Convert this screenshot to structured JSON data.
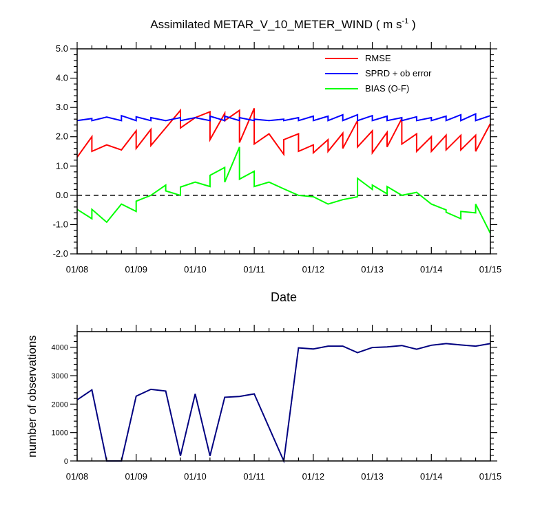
{
  "chart_data": [
    {
      "type": "line",
      "title": "Assimilated METAR_V_10_METER_WIND ( m s",
      "title_exponent": "-1",
      "title_close": " )",
      "xlabel": "Date",
      "ylabel": "",
      "xlim": [
        0,
        7
      ],
      "ylim": [
        -2.0,
        5.0
      ],
      "yticks": [
        -2.0,
        -1.0,
        0.0,
        1.0,
        2.0,
        3.0,
        4.0,
        5.0
      ],
      "ytick_labels": [
        "-2.0",
        "-1.0",
        "0.0",
        "1.0",
        "2.0",
        "3.0",
        "4.0",
        "5.0"
      ],
      "xtick_labels": [
        "01/08",
        "01/09",
        "01/10",
        "01/11",
        "01/12",
        "01/13",
        "01/14",
        "01/15"
      ],
      "zero_line": true,
      "legend_position": "top-right",
      "series": [
        {
          "name": "RMSE",
          "color": "#ff0000",
          "x": [
            0,
            0.25,
            0.25,
            0.5,
            0.75,
            0.75,
            1.0,
            1.0,
            1.25,
            1.25,
            1.5,
            1.75,
            1.75,
            2.0,
            2.25,
            2.25,
            2.5,
            2.5,
            2.75,
            2.75,
            3.0,
            3.0,
            3.25,
            3.5,
            3.5,
            3.75,
            3.75,
            4.0,
            4.0,
            4.25,
            4.25,
            4.5,
            4.5,
            4.75,
            4.75,
            5.0,
            5.0,
            5.25,
            5.25,
            5.5,
            5.5,
            5.75,
            5.75,
            6.0,
            6.0,
            6.25,
            6.25,
            6.5,
            6.5,
            6.75,
            6.75,
            7.0
          ],
          "y": [
            1.3,
            2.0,
            1.5,
            1.72,
            1.55,
            1.55,
            2.2,
            1.6,
            2.25,
            1.7,
            2.3,
            2.9,
            2.3,
            2.65,
            2.85,
            1.9,
            2.8,
            2.55,
            2.9,
            1.8,
            2.97,
            1.75,
            2.1,
            1.4,
            1.9,
            2.1,
            1.5,
            1.72,
            1.45,
            1.9,
            1.5,
            2.12,
            1.6,
            2.55,
            1.65,
            2.2,
            1.45,
            2.15,
            1.65,
            2.62,
            1.75,
            2.1,
            1.5,
            2.0,
            1.5,
            2.05,
            1.55,
            2.05,
            1.55,
            2.05,
            1.5,
            2.45
          ]
        },
        {
          "name": "SPRD + ob error",
          "color": "#0000ff",
          "x": [
            0,
            0.25,
            0.25,
            0.5,
            0.75,
            0.75,
            1.0,
            1.0,
            1.25,
            1.25,
            1.5,
            1.75,
            1.75,
            2.0,
            2.25,
            2.25,
            2.5,
            2.5,
            2.75,
            2.75,
            3.0,
            3.0,
            3.25,
            3.5,
            3.5,
            3.75,
            3.75,
            4.0,
            4.0,
            4.25,
            4.25,
            4.5,
            4.5,
            4.75,
            4.75,
            5.0,
            5.0,
            5.25,
            5.25,
            5.5,
            5.5,
            5.75,
            5.75,
            6.0,
            6.0,
            6.25,
            6.25,
            6.5,
            6.5,
            6.75,
            6.75,
            7.0
          ],
          "y": [
            2.55,
            2.62,
            2.55,
            2.67,
            2.55,
            2.72,
            2.55,
            2.68,
            2.55,
            2.65,
            2.55,
            2.65,
            2.55,
            2.65,
            2.55,
            2.7,
            2.55,
            2.7,
            2.55,
            2.65,
            2.55,
            2.6,
            2.55,
            2.6,
            2.55,
            2.65,
            2.55,
            2.7,
            2.55,
            2.7,
            2.55,
            2.75,
            2.55,
            2.75,
            2.55,
            2.72,
            2.55,
            2.7,
            2.55,
            2.65,
            2.55,
            2.68,
            2.55,
            2.65,
            2.55,
            2.7,
            2.55,
            2.75,
            2.55,
            2.78,
            2.55,
            2.72
          ]
        },
        {
          "name": "BIAS (O-F)",
          "color": "#00ff00",
          "x": [
            0,
            0.25,
            0.25,
            0.5,
            0.75,
            0.75,
            1.0,
            1.0,
            1.25,
            1.5,
            1.5,
            1.75,
            1.75,
            2.0,
            2.25,
            2.25,
            2.5,
            2.5,
            2.75,
            2.75,
            3.0,
            3.0,
            3.25,
            3.5,
            3.75,
            4.0,
            4.0,
            4.25,
            4.5,
            4.75,
            4.75,
            5.0,
            5.0,
            5.25,
            5.25,
            5.5,
            5.75,
            6.0,
            6.0,
            6.25,
            6.25,
            6.5,
            6.5,
            6.75,
            6.75,
            7.0
          ],
          "y": [
            -0.48,
            -0.8,
            -0.48,
            -0.92,
            -0.3,
            -0.3,
            -0.55,
            -0.2,
            0.0,
            0.35,
            0.15,
            0.0,
            0.28,
            0.45,
            0.3,
            0.68,
            0.95,
            0.45,
            1.65,
            0.55,
            0.82,
            0.3,
            0.45,
            0.22,
            0.0,
            -0.05,
            -0.05,
            -0.3,
            -0.15,
            -0.05,
            0.58,
            0.2,
            0.35,
            0.05,
            0.3,
            0.0,
            0.1,
            -0.3,
            -0.3,
            -0.5,
            -0.58,
            -0.8,
            -0.55,
            -0.6,
            -0.3,
            -1.3
          ]
        }
      ]
    },
    {
      "type": "line",
      "title": "",
      "xlabel": "",
      "ylabel": "number of observations",
      "xlim": [
        0,
        7
      ],
      "ylim": [
        0,
        4550
      ],
      "yticks": [
        0,
        1000,
        2000,
        3000,
        4000
      ],
      "ytick_labels": [
        "0",
        "1000",
        "2000",
        "3000",
        "4000"
      ],
      "xtick_labels": [
        "01/08",
        "01/09",
        "01/10",
        "01/11",
        "01/12",
        "01/13",
        "01/14",
        "01/15"
      ],
      "series": [
        {
          "name": "number of observations",
          "color": "#000080",
          "x": [
            0,
            0.25,
            0.5,
            0.75,
            1.0,
            1.25,
            1.5,
            1.75,
            2.0,
            2.25,
            2.5,
            2.75,
            3.0,
            3.5,
            3.75,
            4.0,
            4.25,
            4.5,
            4.75,
            5.0,
            5.25,
            5.5,
            5.75,
            6.0,
            6.25,
            6.5,
            6.75,
            7.0
          ],
          "y": [
            2150,
            2500,
            0,
            0,
            2280,
            2520,
            2460,
            180,
            2360,
            180,
            2240,
            2270,
            2360,
            0,
            3980,
            3940,
            4040,
            4040,
            3810,
            3990,
            4010,
            4060,
            3930,
            4070,
            4130,
            4080,
            4040,
            4130
          ]
        }
      ]
    }
  ]
}
